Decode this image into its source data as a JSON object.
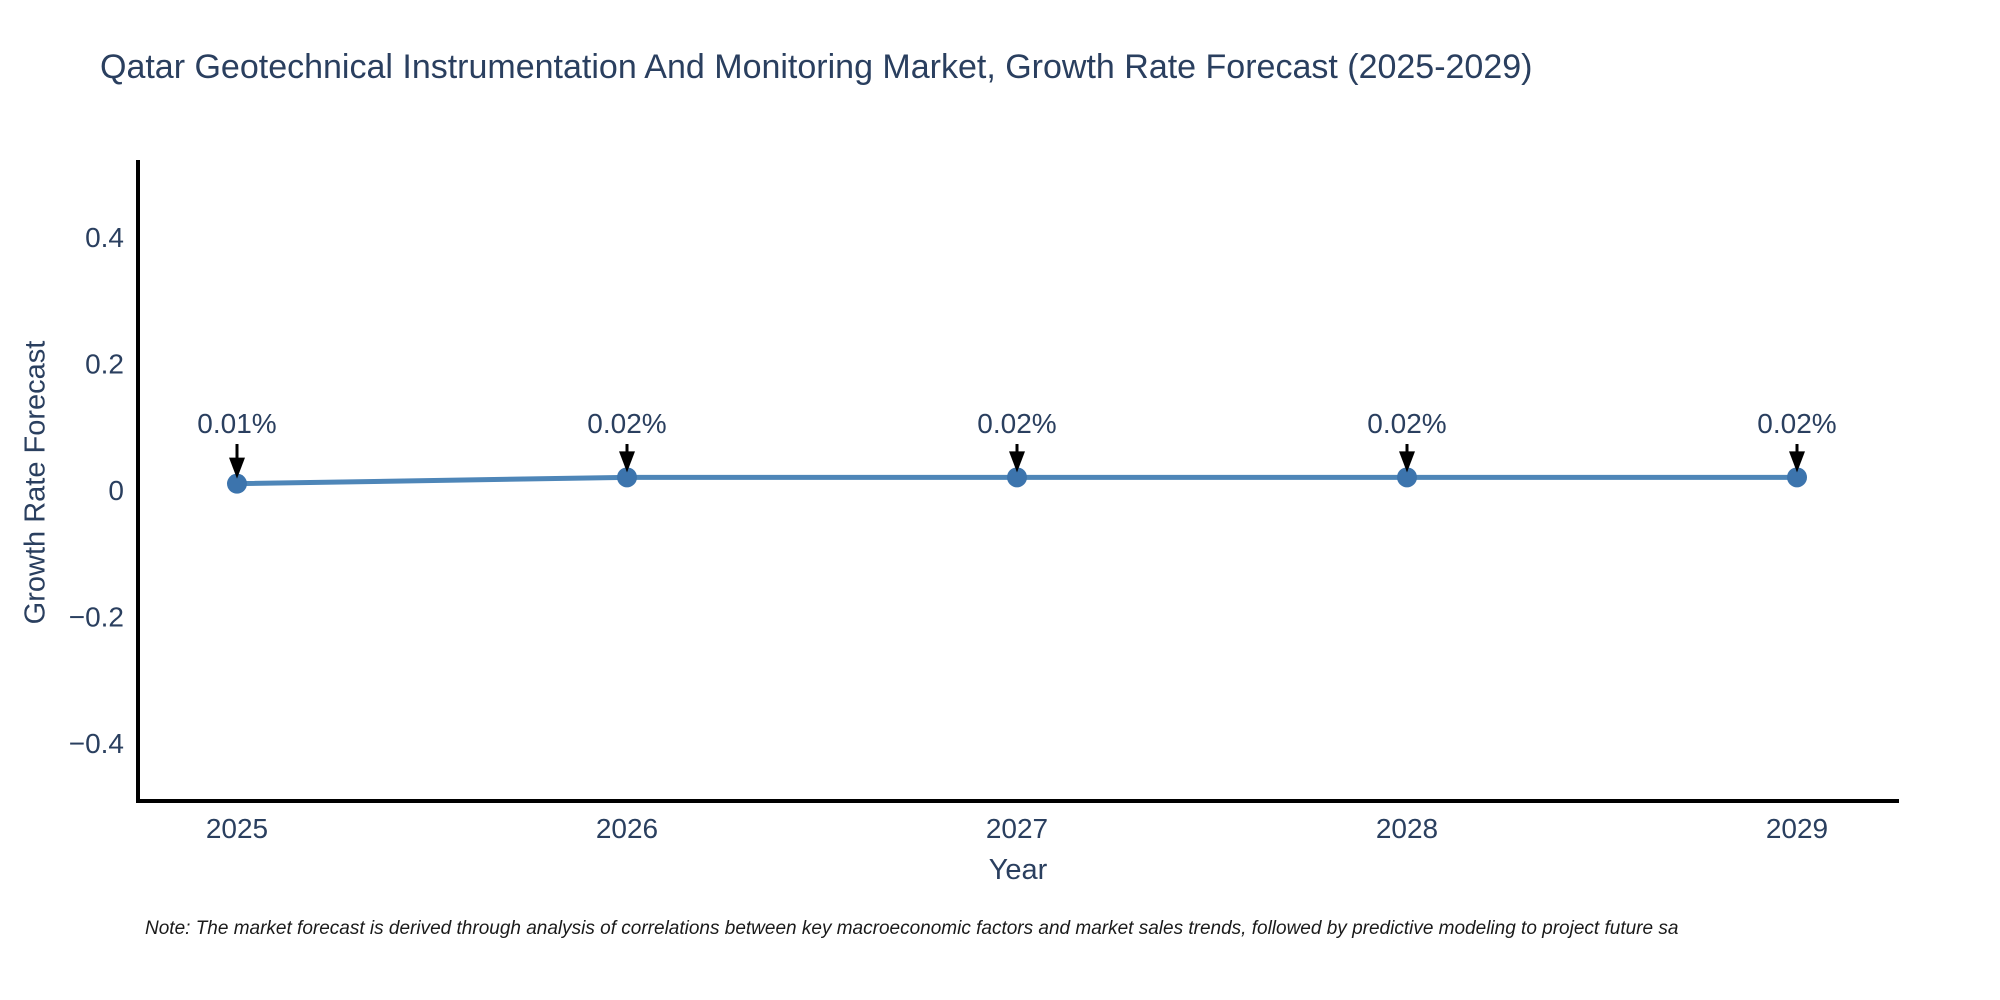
{
  "chart_data": {
    "type": "line",
    "title": "Qatar Geotechnical Instrumentation And Monitoring Market, Growth Rate Forecast (2025-2029)",
    "xlabel": "Year",
    "ylabel": "Growth Rate Forecast",
    "x": [
      "2025",
      "2026",
      "2027",
      "2028",
      "2029"
    ],
    "series": [
      {
        "name": "Growth Rate Forecast",
        "values": [
          0.01,
          0.02,
          0.02,
          0.02,
          0.02
        ],
        "labels": [
          "0.01%",
          "0.02%",
          "0.02%",
          "0.02%",
          "0.02%"
        ]
      }
    ],
    "yticks": {
      "values": [
        0.4,
        0.2,
        0,
        -0.2,
        -0.4
      ],
      "labels": [
        "0.4",
        "0.2",
        "0",
        "−0.2",
        "−0.4"
      ]
    },
    "ylim": [
      -0.49,
      0.52
    ],
    "grid": false,
    "legend_position": "none",
    "annotation_style": "down-arrow",
    "colors": {
      "line": "#4e86b8",
      "marker": "#3c74ad",
      "arrow": "#000000",
      "text": "#2a3f5f",
      "axis": "#000000"
    }
  },
  "note": "Note: The market forecast is derived through analysis of correlations between key macroeconomic factors and market sales trends, followed by predictive modeling to project future sa"
}
